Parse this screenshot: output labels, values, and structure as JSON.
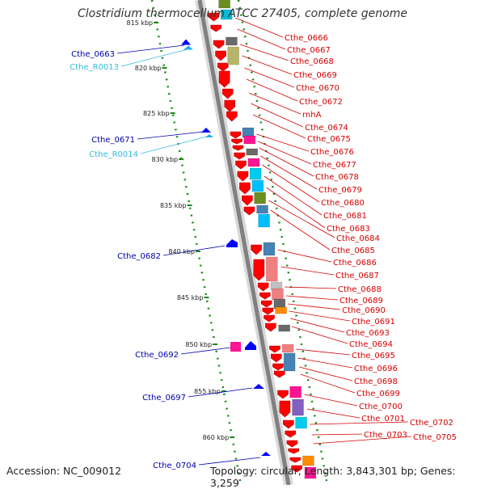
{
  "title": "Clostridium thermocellum ATCC 27405, complete genome",
  "footer": {
    "accession": "Accession: NC_009012",
    "topology": "Topology: circular; Length: 3,843,301 bp; Genes: 3,259"
  },
  "colors": {
    "backbone": "#808080",
    "forward_gene": "#ff0000",
    "reverse_gene": "#0000ff",
    "rna_gene": "#22aaee",
    "label_red": "#d40000",
    "label_blue": "#0000aa",
    "label_cyan": "#33bbdd",
    "ruler_dot": "#1a8a1a"
  },
  "ruler_ticks": [
    {
      "label": "815 kbp"
    },
    {
      "label": "820 kbp"
    },
    {
      "label": "825 kbp"
    },
    {
      "label": "830 kbp"
    },
    {
      "label": "835 kbp"
    },
    {
      "label": "840 kbp"
    },
    {
      "label": "845 kbp"
    },
    {
      "label": "850 kbp"
    },
    {
      "label": "855 kbp"
    },
    {
      "label": "860 kbp"
    }
  ],
  "left_labels": [
    {
      "text": "Cthe_0663",
      "color": "blue"
    },
    {
      "text": "Cthe_R0013",
      "color": "cyan"
    },
    {
      "text": "Cthe_0671",
      "color": "blue"
    },
    {
      "text": "Cthe_R0014",
      "color": "cyan"
    },
    {
      "text": "Cthe_0682",
      "color": "blue"
    },
    {
      "text": "Cthe_0692",
      "color": "blue"
    },
    {
      "text": "Cthe_0697",
      "color": "blue"
    },
    {
      "text": "Cthe_0704",
      "color": "blue"
    }
  ],
  "right_labels": [
    "Cthe_0666",
    "Cthe_0667",
    "Cthe_0668",
    "Cthe_0669",
    "Cthe_0670",
    "Cthe_0672",
    "rnhA",
    "Cthe_0674",
    "Cthe_0675",
    "Cthe_0676",
    "Cthe_0677",
    "Cthe_0678",
    "Cthe_0679",
    "Cthe_0680",
    "Cthe_0681",
    "Cthe_0683",
    "Cthe_0684",
    "Cthe_0685",
    "Cthe_0686",
    "Cthe_0687",
    "Cthe_0688",
    "Cthe_0689",
    "Cthe_0690",
    "Cthe_0691",
    "Cthe_0693",
    "Cthe_0694",
    "Cthe_0695",
    "Cthe_0696",
    "Cthe_0698",
    "Cthe_0699",
    "Cthe_0700",
    "Cthe_0701",
    "Cthe_0702",
    "Cthe_0703",
    "Cthe_0705"
  ]
}
